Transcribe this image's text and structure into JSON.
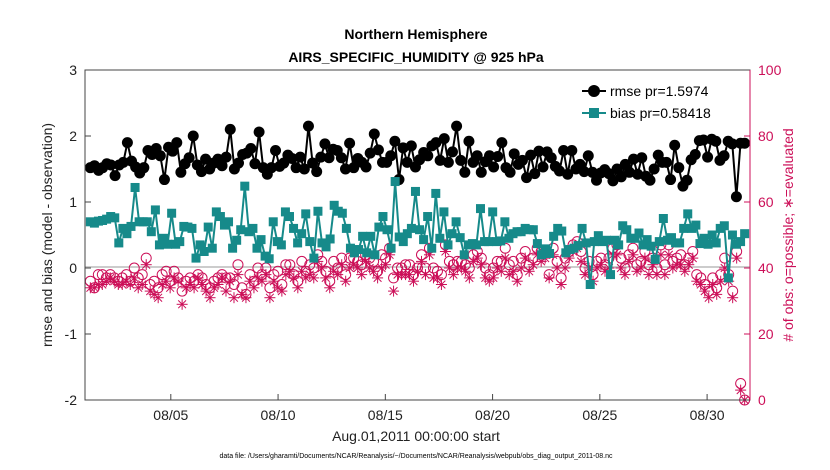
{
  "chart_data": {
    "type": "line",
    "title": [
      "Northern Hemisphere",
      "AIRS_SPECIFIC_HUMIDITY @ 925 hPa"
    ],
    "xlabel": "Aug.01,2011 00:00:00 start",
    "ylabel": "rmse and bias (model - observation)",
    "ylabel_right": "# of obs: o=possible; ∗=evaluated",
    "footnote": "data file: /Users/gharamti/Documents/NCAR/Reanalysis/~/Documents/NCAR/Reanalysis/webpub/obs_diag_output_2011-08.nc",
    "x_tick_labels": [
      "08/05",
      "08/10",
      "08/15",
      "08/20",
      "08/25",
      "08/30"
    ],
    "x_tick_days": [
      5,
      10,
      15,
      20,
      25,
      30
    ],
    "xlim_days": [
      1,
      32
    ],
    "ylim": [
      -2,
      3
    ],
    "y_ticks": [
      -2,
      -1,
      0,
      1,
      2,
      3
    ],
    "ylim_right": [
      0,
      100
    ],
    "y_ticks_right": [
      0,
      20,
      40,
      60,
      80,
      100
    ],
    "legend_position": "top-right",
    "grid": false,
    "colors": {
      "rmse": "#000000",
      "bias": "#168a8a",
      "obs": "#cc0f58",
      "zero_line": "#bbbbbb"
    },
    "series": [
      {
        "name": "rmse pr=1.5974",
        "axis": "left",
        "values": [
          1.52,
          1.55,
          1.48,
          1.52,
          1.58,
          1.56,
          1.4,
          1.56,
          1.6,
          1.9,
          1.62,
          1.53,
          1.44,
          1.52,
          1.78,
          1.72,
          1.81,
          1.7,
          1.34,
          1.83,
          1.77,
          1.9,
          1.45,
          1.58,
          1.67,
          2.0,
          1.56,
          1.46,
          1.65,
          1.5,
          1.59,
          1.65,
          1.55,
          1.68,
          2.1,
          1.5,
          1.59,
          1.72,
          1.74,
          1.81,
          1.58,
          2.06,
          1.52,
          1.42,
          1.52,
          1.78,
          1.54,
          1.59,
          1.71,
          1.66,
          1.52,
          1.68,
          1.5,
          2.15,
          1.59,
          1.46,
          1.68,
          1.88,
          1.67,
          1.8,
          1.78,
          1.67,
          1.5,
          1.89,
          1.52,
          1.66,
          1.6,
          1.53,
          1.74,
          2.03,
          1.79,
          1.6,
          1.6,
          1.7,
          1.92,
          1.34,
          1.82,
          1.6,
          1.85,
          1.53,
          1.64,
          1.75,
          1.7,
          1.85,
          1.9,
          1.63,
          1.96,
          1.6,
          1.76,
          2.15,
          1.63,
          1.45,
          1.92,
          1.6,
          1.7,
          1.45,
          1.61,
          1.7,
          1.53,
          1.69,
          1.9,
          1.52,
          1.45,
          1.73,
          1.57,
          1.63,
          1.37,
          1.71,
          1.43,
          1.77,
          1.53,
          1.76,
          1.67,
          1.54,
          1.47,
          1.78,
          1.42,
          1.78,
          1.5,
          1.57,
          1.46,
          1.7,
          1.45,
          1.33,
          1.44,
          1.49,
          1.43,
          1.32,
          1.5,
          1.38,
          1.57,
          1.45,
          1.65,
          1.42,
          1.67,
          1.39,
          1.33,
          1.5,
          1.71,
          1.6,
          1.6,
          1.34,
          1.86,
          1.52,
          1.24,
          1.33,
          1.64,
          1.72,
          1.93,
          1.94,
          1.68,
          1.95,
          1.92,
          1.63,
          1.7,
          1.92,
          1.88,
          1.08,
          1.89,
          1.89
        ]
      },
      {
        "name": "bias pr=0.58418",
        "axis": "left",
        "values": [
          0.7,
          0.68,
          0.71,
          0.72,
          0.74,
          0.78,
          0.76,
          0.38,
          0.6,
          0.52,
          0.63,
          1.22,
          0.7,
          0.7,
          0.7,
          0.55,
          0.88,
          0.35,
          0.45,
          0.36,
          0.83,
          0.36,
          0.4,
          0.63,
          0.62,
          0.6,
          0.15,
          0.35,
          0.25,
          0.62,
          0.3,
          0.85,
          0.78,
          0.65,
          0.7,
          0.3,
          0.42,
          0.58,
          1.24,
          0.55,
          0.6,
          0.3,
          0.43,
          0.18,
          0.14,
          0.7,
          0.4,
          0.35,
          0.85,
          0.78,
          0.6,
          0.38,
          0.52,
          0.82,
          0.4,
          0.15,
          0.86,
          0.38,
          0.32,
          0.44,
          0.95,
          0.86,
          0.83,
          0.6,
          0.3,
          0.23,
          0.28,
          0.48,
          0.23,
          0.48,
          0.2,
          0.62,
          0.78,
          0.58,
          0.3,
          1.31,
          0.47,
          0.4,
          0.52,
          0.6,
          1.16,
          0.58,
          0.43,
          0.78,
          0.3,
          1.13,
          0.45,
          0.85,
          0.35,
          0.52,
          0.7,
          0.46,
          0.2,
          0.35,
          0.37,
          0.35,
          0.9,
          0.4,
          0.4,
          0.85,
          0.4,
          0.41,
          0.7,
          0.45,
          0.52,
          0.55,
          0.55,
          0.6,
          0.58,
          0.58,
          0.37,
          0.2,
          0.29,
          0.22,
          0.48,
          0.6,
          0.56,
          0.23,
          0.28,
          0.3,
          0.34,
          0.6,
          0.38,
          -0.25,
          0.4,
          0.49,
          0.4,
          0.42,
          -0.1,
          0.42,
          0.35,
          0.64,
          0.58,
          0.45,
          0.45,
          0.53,
          0.35,
          0.43,
          0.33,
          0.13,
          0.4,
          0.75,
          0.42,
          0.46,
          0.38,
          0.38,
          0.6,
          0.82,
          0.6,
          0.65,
          0.37,
          0.45,
          0.36,
          0.5,
          0.38,
          0.6,
          0.64,
          -0.15,
          0.5,
          0.36,
          0.4,
          0.52
        ]
      },
      {
        "name": "possible",
        "axis": "right",
        "marker": "circle",
        "values": [
          36,
          34,
          38,
          38,
          37,
          38,
          37,
          36,
          37,
          38,
          36,
          40,
          37,
          38,
          43,
          35,
          36,
          34,
          38,
          39,
          36,
          39,
          37,
          33,
          36,
          37,
          36,
          38,
          37,
          35,
          34,
          36,
          37,
          38,
          37,
          37,
          35,
          41,
          34,
          32,
          38,
          36,
          40,
          38,
          40,
          34,
          38,
          39,
          35,
          41,
          41,
          38,
          36,
          42,
          39,
          41,
          40,
          44,
          42,
          39,
          36,
          42,
          40,
          43,
          38,
          43,
          43,
          42,
          41,
          44,
          43,
          42,
          39,
          44,
          43,
          46,
          37,
          40,
          40,
          41,
          41,
          38,
          40,
          44,
          40,
          46,
          40,
          39,
          38,
          47,
          42,
          41,
          42,
          42,
          41,
          40,
          44,
          45,
          43,
          40,
          38,
          40,
          42,
          42,
          46,
          41,
          42,
          38,
          43,
          45,
          41,
          43,
          46,
          45,
          45,
          38,
          46,
          42,
          37,
          43,
          45,
          47,
          48,
          45,
          40,
          42,
          38,
          42,
          43,
          41,
          43,
          46,
          47,
          43,
          40,
          44,
          46,
          41,
          42,
          45,
          41,
          43,
          40,
          47,
          41,
          47,
          42,
          43,
          44,
          41,
          43,
          45,
          38,
          37,
          35,
          33,
          37,
          34,
          38,
          43,
          38,
          33,
          45,
          5,
          0
        ]
      },
      {
        "name": "evaluated",
        "axis": "right",
        "marker": "star",
        "values": [
          34,
          34,
          35,
          35,
          36,
          37,
          36,
          35,
          35,
          36,
          35,
          37,
          34,
          35,
          41,
          33,
          32,
          31,
          35,
          36,
          34,
          37,
          36,
          29,
          34,
          35,
          34,
          37,
          35,
          33,
          31,
          34,
          35,
          37,
          33,
          36,
          31,
          38,
          32,
          31,
          36,
          34,
          37,
          36,
          38,
          31,
          36,
          34,
          33,
          38,
          39,
          37,
          34,
          39,
          37,
          38,
          37,
          42,
          40,
          37,
          34,
          39,
          38,
          41,
          36,
          40,
          41,
          40,
          38,
          42,
          40,
          39,
          37,
          40,
          41,
          44,
          33,
          38,
          38,
          38,
          38,
          36,
          39,
          42,
          38,
          44,
          37,
          37,
          35,
          45,
          40,
          38,
          40,
          40,
          39,
          37,
          42,
          43,
          41,
          37,
          36,
          37,
          40,
          39,
          43,
          38,
          39,
          36,
          40,
          43,
          39,
          41,
          44,
          42,
          43,
          37,
          44,
          40,
          35,
          40,
          43,
          45,
          46,
          42,
          38,
          40,
          36,
          40,
          41,
          39,
          40,
          44,
          44,
          40,
          38,
          42,
          44,
          39,
          40,
          43,
          38,
          41,
          38,
          44,
          38,
          44,
          40,
          41,
          41,
          39,
          41,
          43,
          36,
          35,
          33,
          31,
          35,
          32,
          36,
          40,
          36,
          31,
          43,
          3,
          0
        ]
      }
    ]
  }
}
